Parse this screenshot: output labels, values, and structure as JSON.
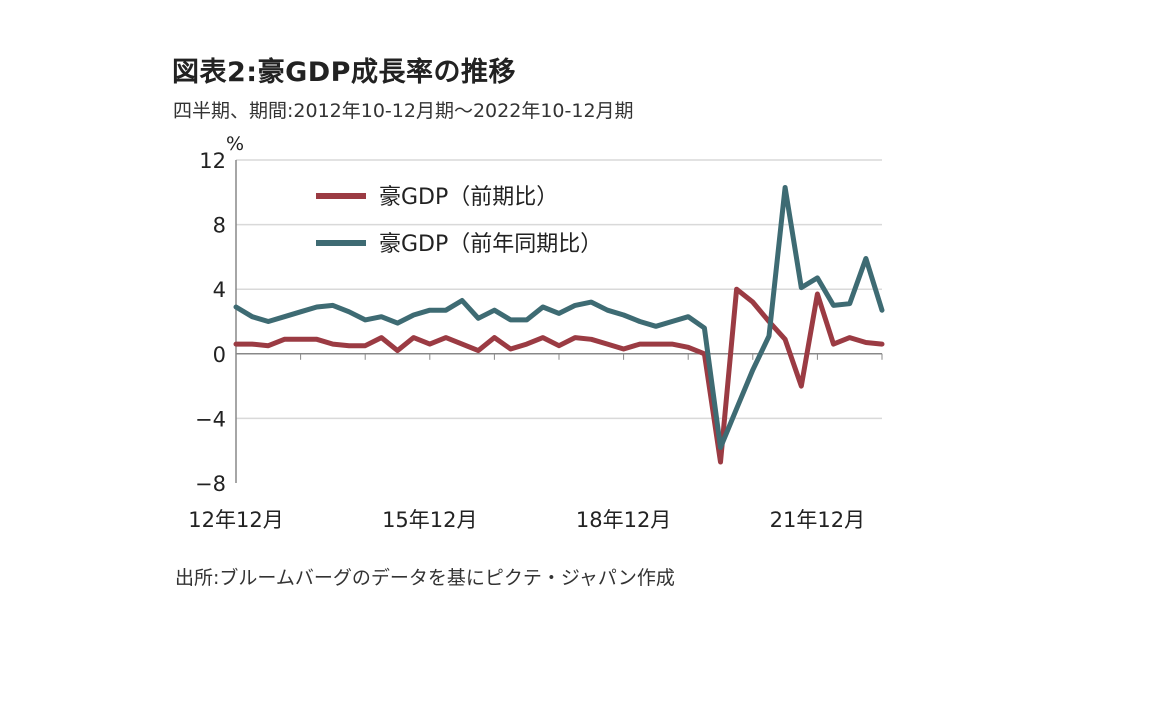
{
  "title": "図表2:豪GDP成長率の推移",
  "subtitle": "四半期、期間:2012年10-12月期～2022年10-12月期",
  "source": "出所:ブルームバーグのデータを基にピクテ・ジャパン作成",
  "colors": {
    "qoq": "#9b3b43",
    "yoy": "#3e6b73",
    "axis": "#888888",
    "grid": "#d9d9d9"
  },
  "chart_data": {
    "type": "line",
    "ylabel": "%",
    "ylim": [
      -8,
      12
    ],
    "yticks": [
      -8,
      -4,
      0,
      4,
      8,
      12
    ],
    "ytick_labels": [
      "−8",
      "−4",
      "0",
      "4",
      "8",
      "12"
    ],
    "xtick_labels": [
      {
        "index": 0,
        "label": "12年12月"
      },
      {
        "index": 12,
        "label": "15年12月"
      },
      {
        "index": 24,
        "label": "18年12月"
      },
      {
        "index": 36,
        "label": "21年12月"
      }
    ],
    "x": [
      "2012Q4",
      "2013Q1",
      "2013Q2",
      "2013Q3",
      "2013Q4",
      "2014Q1",
      "2014Q2",
      "2014Q3",
      "2014Q4",
      "2015Q1",
      "2015Q2",
      "2015Q3",
      "2015Q4",
      "2016Q1",
      "2016Q2",
      "2016Q3",
      "2016Q4",
      "2017Q1",
      "2017Q2",
      "2017Q3",
      "2017Q4",
      "2018Q1",
      "2018Q2",
      "2018Q3",
      "2018Q4",
      "2019Q1",
      "2019Q2",
      "2019Q3",
      "2019Q4",
      "2020Q1",
      "2020Q2",
      "2020Q3",
      "2020Q4",
      "2021Q1",
      "2021Q2",
      "2021Q3",
      "2021Q4",
      "2022Q1",
      "2022Q2",
      "2022Q3",
      "2022Q4"
    ],
    "legend_position": "top-left",
    "series": [
      {
        "name": "豪GDP（前期比）",
        "color": "#9b3b43",
        "values": [
          0.6,
          0.6,
          0.5,
          0.9,
          0.9,
          0.9,
          0.6,
          0.5,
          0.5,
          1.0,
          0.2,
          1.0,
          0.6,
          1.0,
          0.6,
          0.2,
          1.0,
          0.3,
          0.6,
          1.0,
          0.5,
          1.0,
          0.9,
          0.6,
          0.3,
          0.6,
          0.6,
          0.6,
          0.4,
          0.0,
          -6.7,
          4.0,
          3.2,
          2.0,
          0.9,
          -2.0,
          3.7,
          0.6,
          1.0,
          0.7,
          0.6
        ]
      },
      {
        "name": "豪GDP（前年同期比）",
        "color": "#3e6b73",
        "values": [
          2.9,
          2.3,
          2.0,
          2.3,
          2.6,
          2.9,
          3.0,
          2.6,
          2.1,
          2.3,
          1.9,
          2.4,
          2.7,
          2.7,
          3.3,
          2.2,
          2.7,
          2.1,
          2.1,
          2.9,
          2.5,
          3.0,
          3.2,
          2.7,
          2.4,
          2.0,
          1.7,
          2.0,
          2.3,
          1.6,
          -5.8,
          -3.4,
          -1.0,
          1.1,
          10.3,
          4.1,
          4.7,
          3.0,
          3.1,
          5.9,
          2.7
        ]
      }
    ]
  }
}
